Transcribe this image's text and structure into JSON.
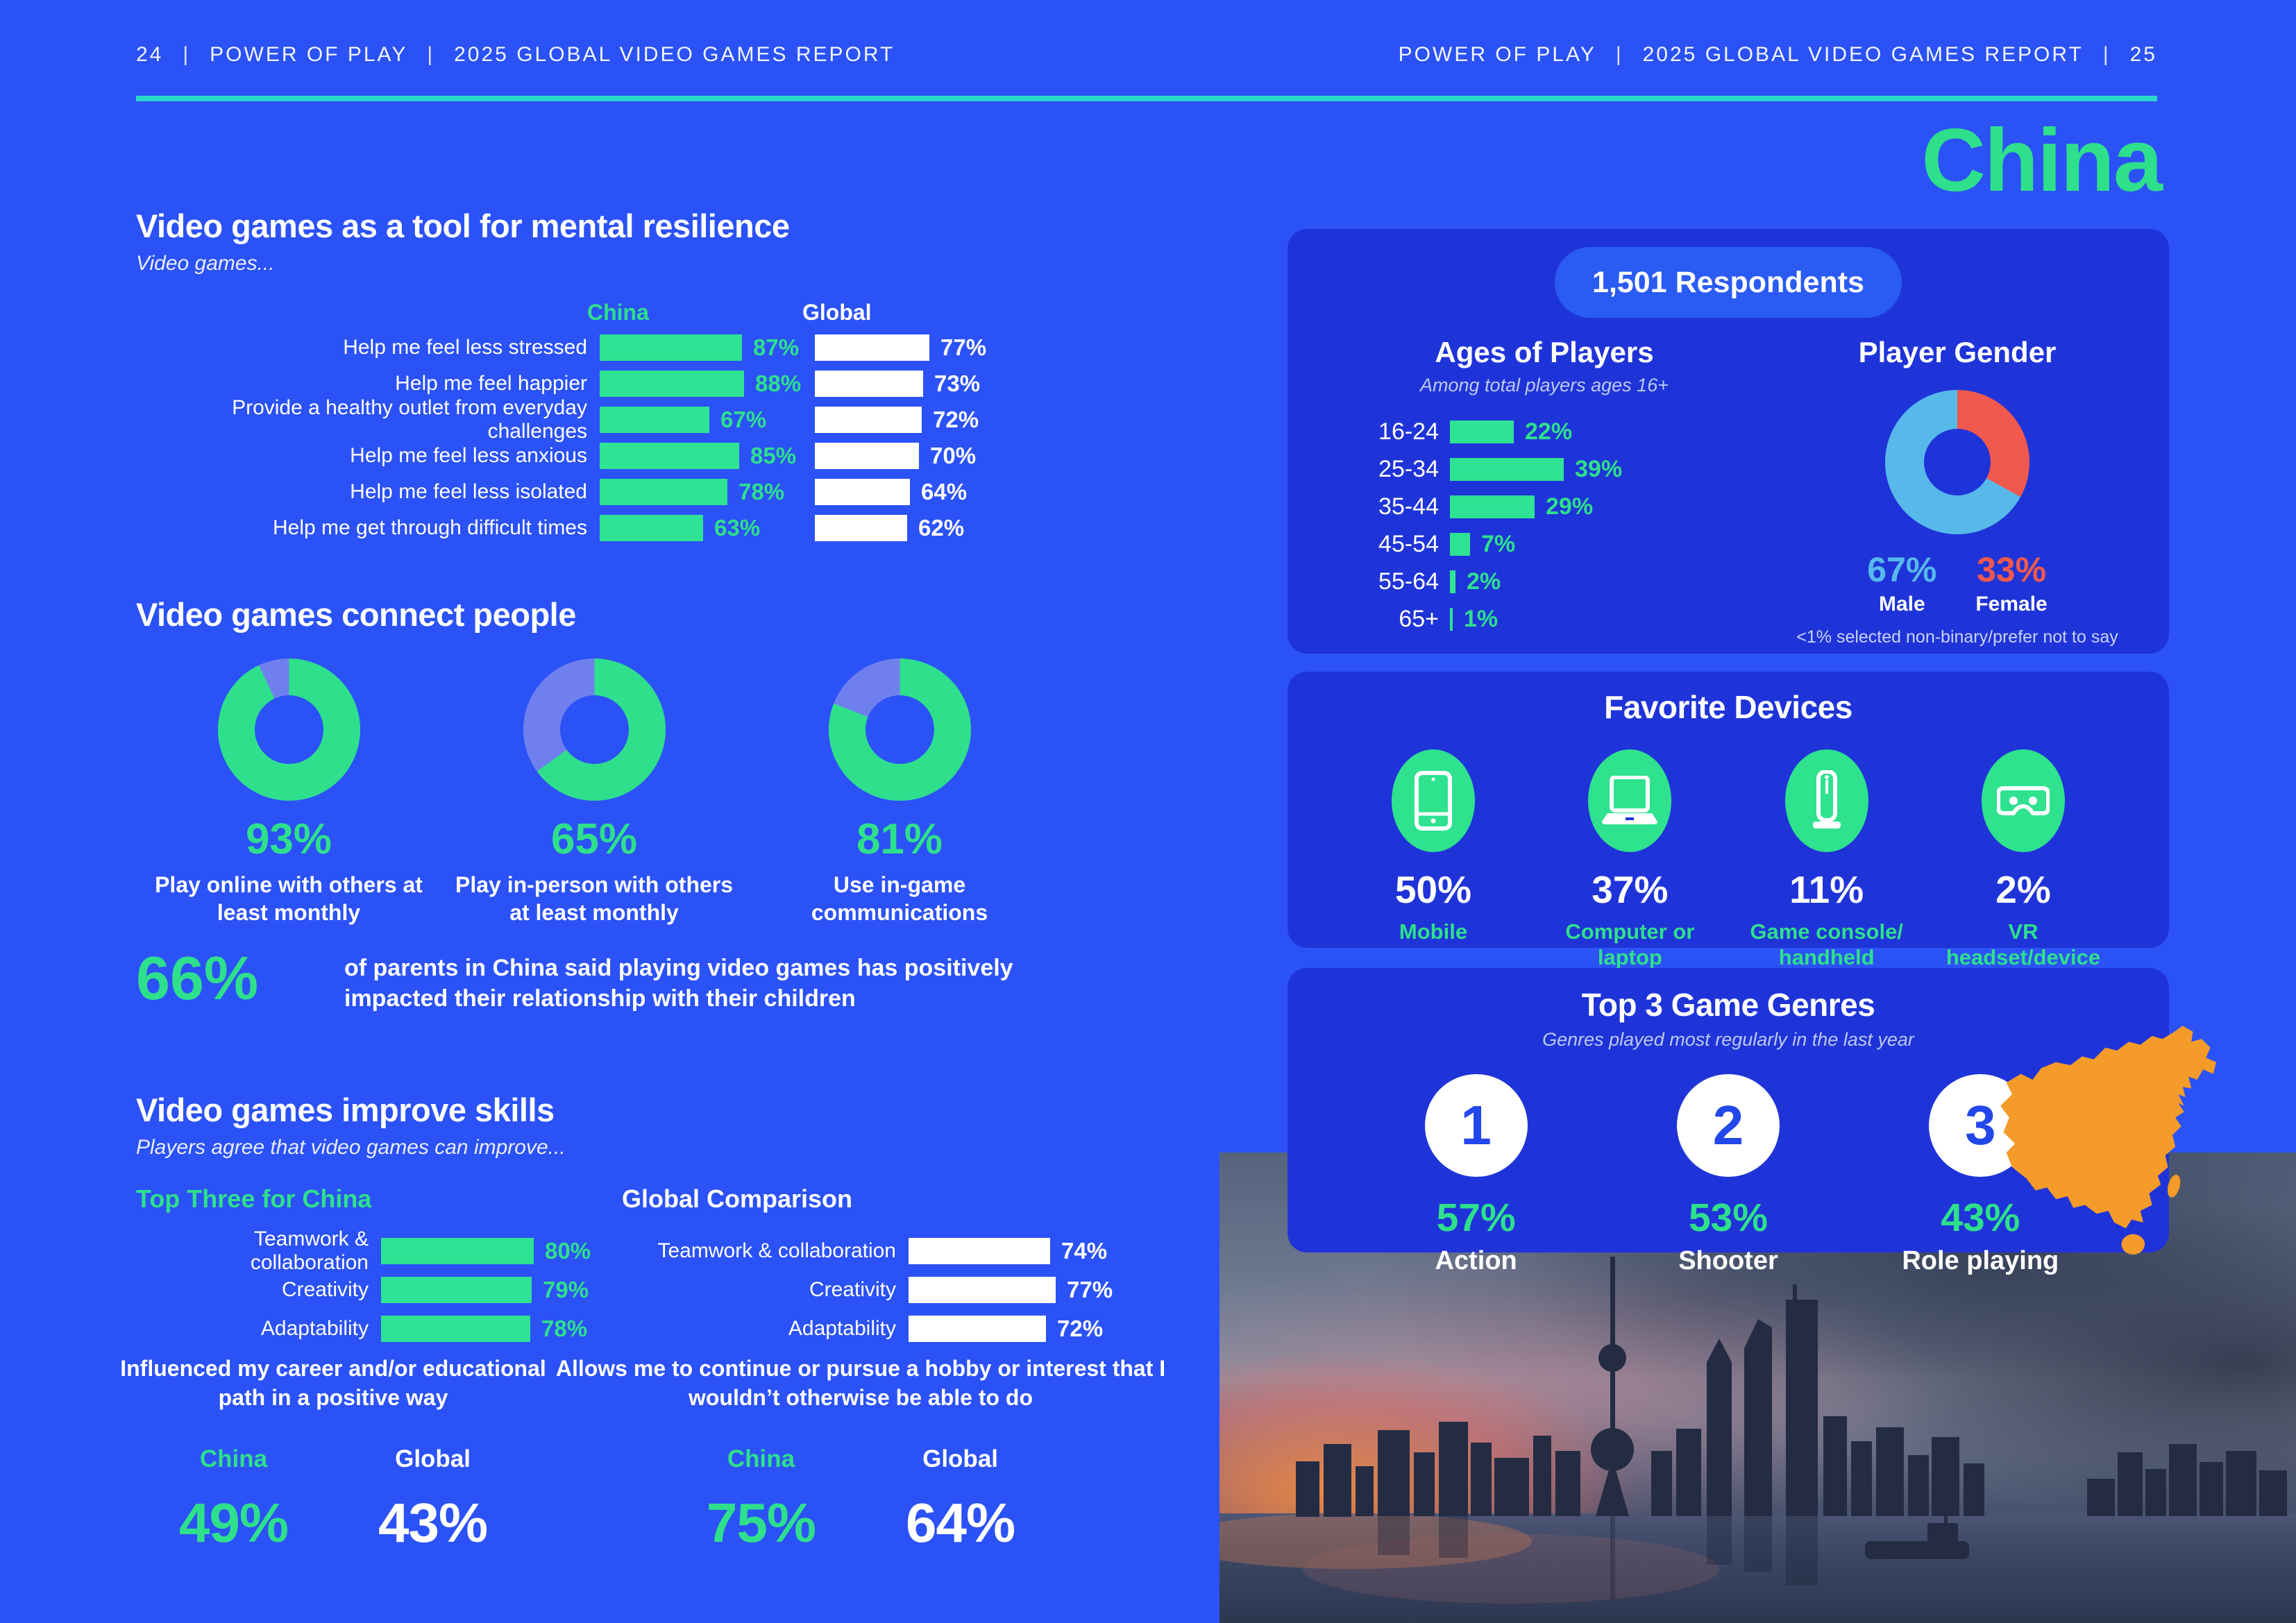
{
  "header": {
    "sep": "|",
    "page_left": "24",
    "brand": "POWER OF PLAY",
    "report": "2025 GLOBAL VIDEO GAMES REPORT",
    "page_right": "25"
  },
  "country_title": "China",
  "resilience": {
    "title": "Video games as a tool for mental resilience",
    "subtitle": "Video games...",
    "col_china": "China",
    "col_global": "Global",
    "rows": [
      {
        "label": "Help me feel less stressed",
        "china": 87,
        "china_pct": "87%",
        "global": 77,
        "global_pct": "77%"
      },
      {
        "label": "Help me feel happier",
        "china": 88,
        "china_pct": "88%",
        "global": 73,
        "global_pct": "73%"
      },
      {
        "label": "Provide a healthy outlet from everyday challenges",
        "china": 67,
        "china_pct": "67%",
        "global": 72,
        "global_pct": "72%"
      },
      {
        "label": "Help me feel less anxious",
        "china": 85,
        "china_pct": "85%",
        "global": 70,
        "global_pct": "70%"
      },
      {
        "label": "Help me feel less isolated",
        "china": 78,
        "china_pct": "78%",
        "global": 64,
        "global_pct": "64%"
      },
      {
        "label": "Help me get through difficult times",
        "china": 63,
        "china_pct": "63%",
        "global": 62,
        "global_pct": "62%"
      }
    ]
  },
  "connect": {
    "title": "Video games connect people",
    "donuts": [
      {
        "value": 93,
        "pct": "93%",
        "label": "Play online with others at least monthly"
      },
      {
        "value": 65,
        "pct": "65%",
        "label": "Play in-person with others at least monthly"
      },
      {
        "value": 81,
        "pct": "81%",
        "label": "Use in-game communications"
      }
    ]
  },
  "parents": {
    "pct": "66%",
    "text": "of parents in China said playing video games has positively impacted their relationship with their children"
  },
  "skills": {
    "title": "Video games improve skills",
    "subtitle": "Players agree that video games can improve...",
    "china_heading": "Top Three for China",
    "global_heading": "Global Comparison",
    "china_rows": [
      {
        "label": "Teamwork & collaboration",
        "value": 80,
        "pct": "80%"
      },
      {
        "label": "Creativity",
        "value": 79,
        "pct": "79%"
      },
      {
        "label": "Adaptability",
        "value": 78,
        "pct": "78%"
      }
    ],
    "global_rows": [
      {
        "label": "Teamwork & collaboration",
        "value": 74,
        "pct": "74%"
      },
      {
        "label": "Creativity",
        "value": 77,
        "pct": "77%"
      },
      {
        "label": "Adaptability",
        "value": 72,
        "pct": "72%"
      }
    ]
  },
  "career": {
    "title": "Influenced my career and/or educational path in a positive way",
    "china_label": "China",
    "global_label": "Global",
    "china_pct": "49%",
    "global_pct": "43%"
  },
  "hobby": {
    "title": "Allows me to continue or pursue a hobby or interest that I wouldn’t otherwise be able to do",
    "china_label": "China",
    "global_label": "Global",
    "china_pct": "75%",
    "global_pct": "64%"
  },
  "respondents": {
    "badge": "1,501 Respondents",
    "ages": {
      "title": "Ages of Players",
      "subtitle": "Among total players ages 16+",
      "rows": [
        {
          "label": "16-24",
          "value": 22,
          "pct": "22%"
        },
        {
          "label": "25-34",
          "value": 39,
          "pct": "39%"
        },
        {
          "label": "35-44",
          "value": 29,
          "pct": "29%"
        },
        {
          "label": "45-54",
          "value": 7,
          "pct": "7%"
        },
        {
          "label": "55-64",
          "value": 2,
          "pct": "2%"
        },
        {
          "label": "65+",
          "value": 1,
          "pct": "1%"
        }
      ]
    },
    "gender": {
      "title": "Player Gender",
      "male_value": 67,
      "female_value": 33,
      "male_pct": "67%",
      "male_label": "Male",
      "female_pct": "33%",
      "female_label": "Female",
      "footnote": "<1% selected non-binary/prefer not to say"
    }
  },
  "devices": {
    "title": "Favorite Devices",
    "items": [
      {
        "pct": "50%",
        "label": "Mobile",
        "icon": "mobile-icon"
      },
      {
        "pct": "37%",
        "label": "Computer or laptop",
        "icon": "laptop-icon"
      },
      {
        "pct": "11%",
        "label": "Game console/ handheld",
        "icon": "game-console-icon"
      },
      {
        "pct": "2%",
        "label": "VR headset/device",
        "icon": "vr-headset-icon"
      }
    ]
  },
  "genres": {
    "title": "Top 3 Game Genres",
    "subtitle": "Genres played most regularly in the last year",
    "items": [
      {
        "rank": "1",
        "pct": "57%",
        "label": "Action"
      },
      {
        "rank": "2",
        "pct": "53%",
        "label": "Shooter"
      },
      {
        "rank": "3",
        "pct": "43%",
        "label": "Role playing"
      }
    ]
  },
  "colors": {
    "page_bg": "#2B52F6",
    "card_bg": "#1F34D8",
    "pill_bg": "#2A5BF2",
    "accent_green": "#2EE08C",
    "rule_teal": "#2BD7C9",
    "donut_rest": "#6F80EE",
    "male_blue": "#57B9EA",
    "female_coral": "#F2594E",
    "map_orange": "#F49B2A",
    "rank_blue": "#2247EA"
  },
  "chart_data": [
    {
      "type": "bar",
      "title": "Video games as a tool for mental resilience",
      "categories": [
        "Help me feel less stressed",
        "Help me feel happier",
        "Provide a healthy outlet from everyday challenges",
        "Help me feel less anxious",
        "Help me feel less isolated",
        "Help me get through difficult times"
      ],
      "series": [
        {
          "name": "China",
          "values": [
            87,
            88,
            67,
            85,
            78,
            63
          ]
        },
        {
          "name": "Global",
          "values": [
            77,
            73,
            72,
            70,
            64,
            62
          ]
        }
      ],
      "unit": "%"
    },
    {
      "type": "pie",
      "title": "Video games connect people",
      "categories": [
        "Play online with others at least monthly",
        "Play in-person with others at least monthly",
        "Use in-game communications"
      ],
      "values": [
        93,
        65,
        81
      ],
      "unit": "%"
    },
    {
      "type": "bar",
      "title": "Video games improve skills",
      "categories": [
        "Teamwork & collaboration",
        "Creativity",
        "Adaptability"
      ],
      "series": [
        {
          "name": "China",
          "values": [
            80,
            79,
            78
          ]
        },
        {
          "name": "Global",
          "values": [
            74,
            77,
            72
          ]
        }
      ],
      "unit": "%"
    },
    {
      "type": "bar",
      "title": "Influenced my career and/or educational path in a positive way",
      "categories": [
        "China",
        "Global"
      ],
      "values": [
        49,
        43
      ],
      "unit": "%"
    },
    {
      "type": "bar",
      "title": "Allows me to continue or pursue a hobby or interest that I wouldn’t otherwise be able to do",
      "categories": [
        "China",
        "Global"
      ],
      "values": [
        75,
        64
      ],
      "unit": "%"
    },
    {
      "type": "bar",
      "title": "Ages of Players",
      "categories": [
        "16-24",
        "25-34",
        "35-44",
        "45-54",
        "55-64",
        "65+"
      ],
      "values": [
        22,
        39,
        29,
        7,
        2,
        1
      ],
      "unit": "%"
    },
    {
      "type": "pie",
      "title": "Player Gender",
      "categories": [
        "Male",
        "Female"
      ],
      "values": [
        67,
        33
      ],
      "unit": "%"
    },
    {
      "type": "bar",
      "title": "Favorite Devices",
      "categories": [
        "Mobile",
        "Computer or laptop",
        "Game console/ handheld",
        "VR headset/device"
      ],
      "values": [
        50,
        37,
        11,
        2
      ],
      "unit": "%"
    },
    {
      "type": "bar",
      "title": "Top 3 Game Genres",
      "categories": [
        "Action",
        "Shooter",
        "Role playing"
      ],
      "values": [
        57,
        53,
        43
      ],
      "unit": "%"
    }
  ]
}
